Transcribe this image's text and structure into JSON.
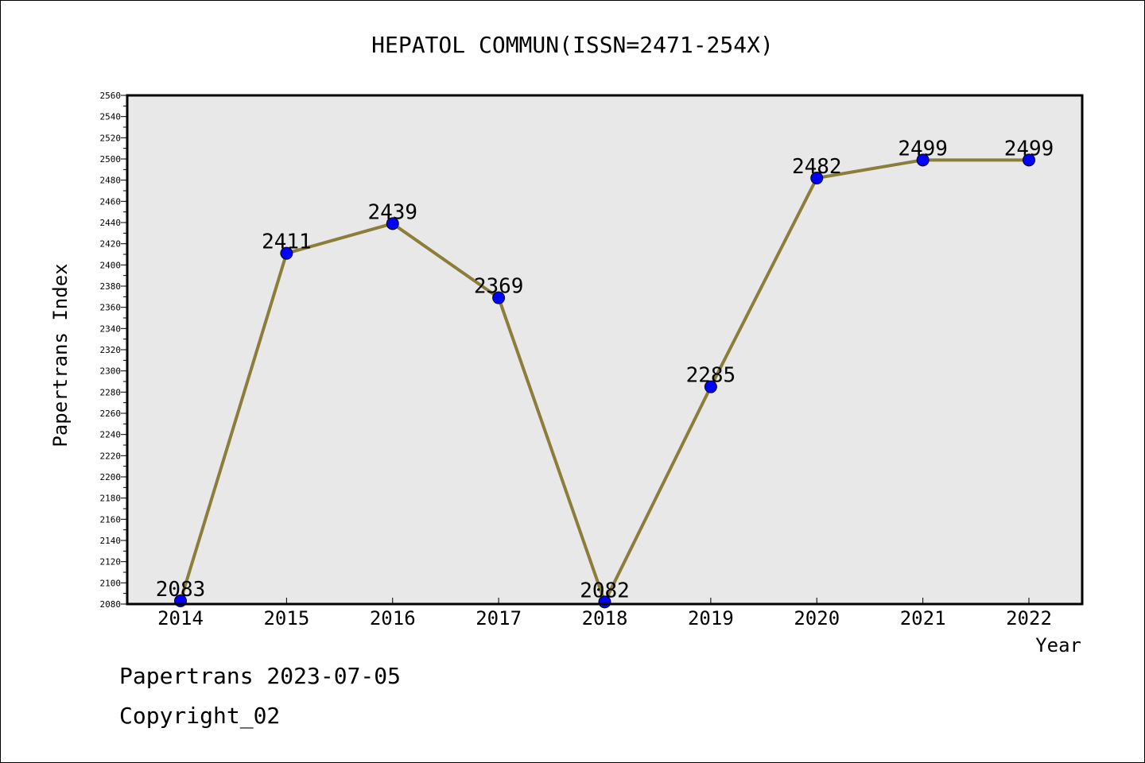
{
  "chart_data": {
    "type": "line",
    "title": "HEPATOL COMMUN(ISSN=2471-254X)",
    "xlabel": "Year",
    "ylabel": "Papertrans Index",
    "categories": [
      "2014",
      "2015",
      "2016",
      "2017",
      "2018",
      "2019",
      "2020",
      "2021",
      "2022"
    ],
    "series": [
      {
        "values": [
          2083,
          2411,
          2439,
          2369,
          2082,
          2285,
          2482,
          2499,
          2499
        ]
      }
    ],
    "data_labels": [
      "2083",
      "2411",
      "2439",
      "2369",
      "2082",
      "2285",
      "2482",
      "2499",
      "2499"
    ],
    "ylim": [
      2080,
      2560
    ],
    "y_major_step": 20,
    "y_minor_step": 10,
    "yticks": [
      "2080",
      "2100",
      "2120",
      "2140",
      "2160",
      "2180",
      "2200",
      "2220",
      "2240",
      "2260",
      "2280",
      "2300",
      "2320",
      "2340",
      "2360",
      "2380",
      "2400",
      "2420",
      "2440",
      "2460",
      "2480",
      "2500",
      "2520",
      "2540",
      "2560"
    ],
    "grid": false,
    "colors": {
      "line": "#8b7d3a",
      "marker": "#0000ff",
      "plot_background": "#e8e8e8"
    }
  },
  "footer": {
    "line1": "Papertrans 2023-07-05",
    "line2": "Copyright_02"
  }
}
